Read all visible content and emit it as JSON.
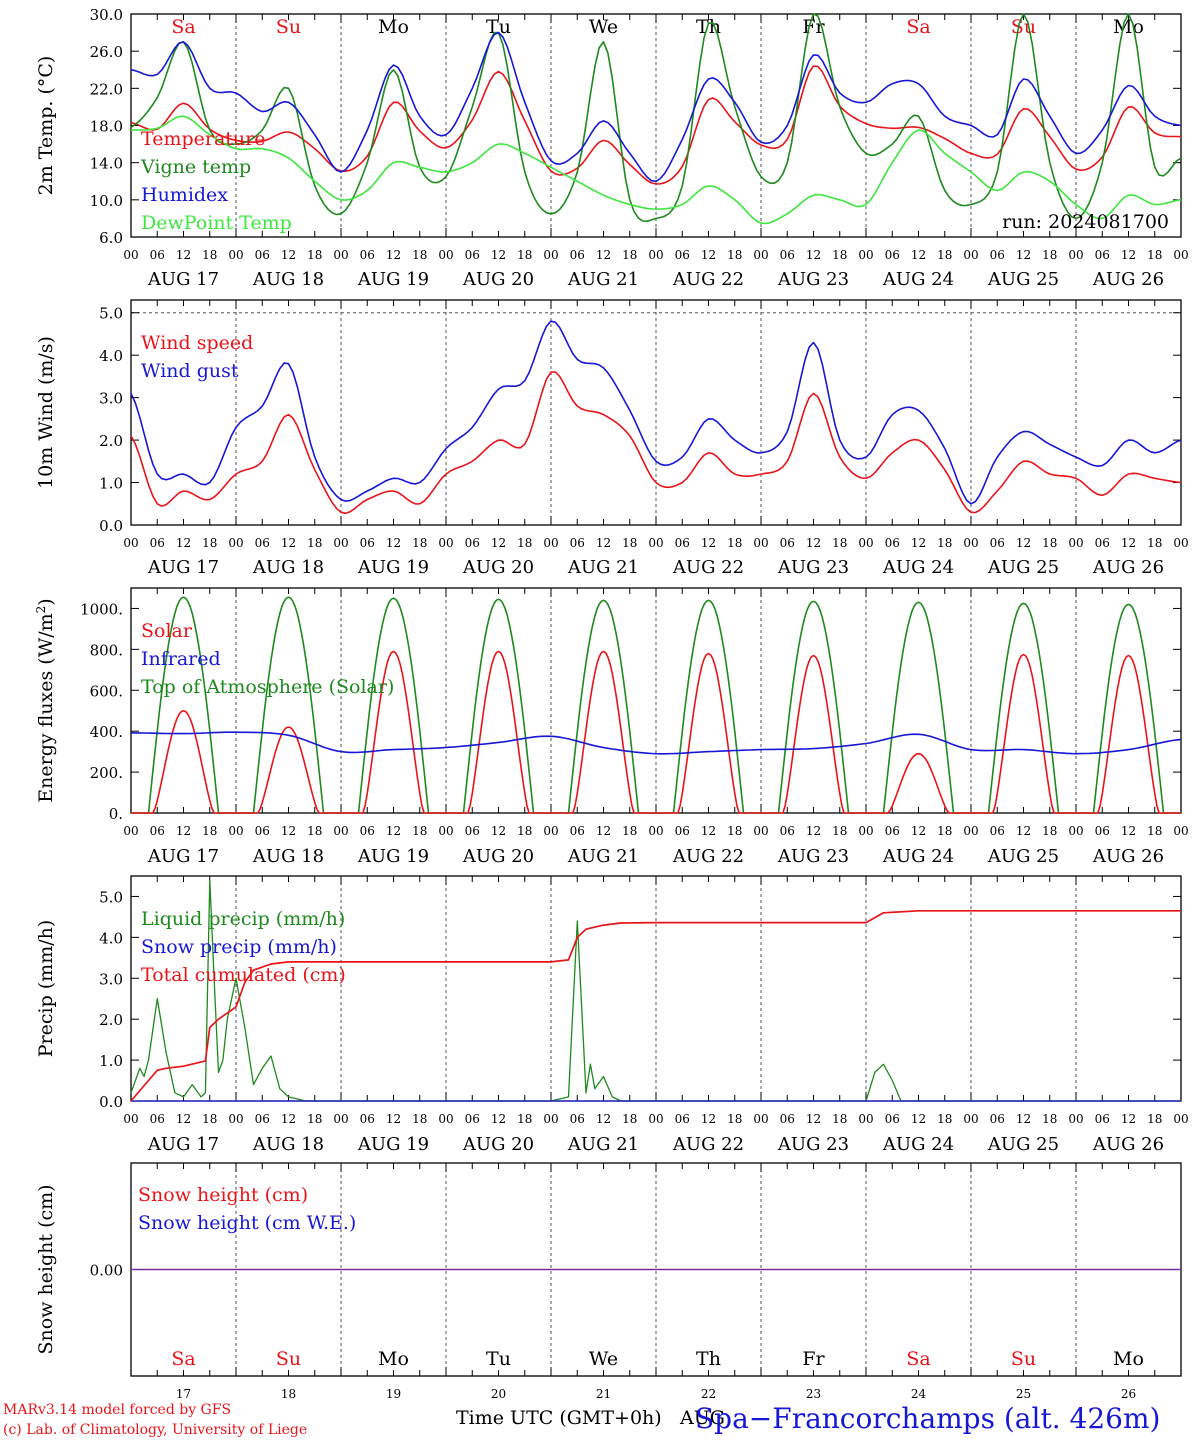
{
  "colors": {
    "red": "#e8141a",
    "green": "#1e8a1e",
    "blue": "#1717d6",
    "lightgreen": "#3ee63e",
    "purple": "#7a2a9a",
    "axis": "#000000",
    "grid": "#555555"
  },
  "day_labels": [
    "Sa",
    "Su",
    "Mo",
    "Tu",
    "We",
    "Th",
    "Fr",
    "Sa",
    "Su",
    "Mo"
  ],
  "weekend_flags": [
    true,
    true,
    false,
    false,
    false,
    false,
    false,
    true,
    true,
    false
  ],
  "date_labels": [
    "AUG 17",
    "AUG 18",
    "AUG 19",
    "AUG 20",
    "AUG 21",
    "AUG 22",
    "AUG 23",
    "AUG 24",
    "AUG 25",
    "AUG 26"
  ],
  "hour_labels": [
    "00",
    "06",
    "12",
    "18"
  ],
  "last_hour_label": "00",
  "bottom_day_numbers": [
    "17",
    "18",
    "19",
    "20",
    "21",
    "22",
    "23",
    "24",
    "25",
    "26"
  ],
  "footer": {
    "time_axis_label": "Time UTC (GMT+0h)",
    "month": "AUG",
    "station": "Spa−Francorchamps (alt. 426m)",
    "credit_line1": "MARv3.14 model forced by GFS",
    "credit_line2": "(c) Lab. of Climatology, University of Liege"
  },
  "chart_data": [
    {
      "type": "line",
      "ylabel": "2m Temp. (°C)",
      "ylim": [
        6,
        30
      ],
      "yticks": [
        "6.0",
        "10.0",
        "14.0",
        "18.0",
        "22.0",
        "26.0",
        "30.0"
      ],
      "ytick_values": [
        6,
        10,
        14,
        18,
        22,
        26,
        30
      ],
      "annotation": "run: 2024081700",
      "x_hours_from_start": [
        0,
        6,
        12,
        18,
        24,
        30,
        36,
        42,
        48,
        54,
        60,
        66,
        72,
        78,
        84,
        90,
        96,
        102,
        108,
        114,
        120,
        126,
        132,
        138,
        144,
        150,
        156,
        162,
        168,
        174,
        180,
        186,
        192,
        198,
        204,
        210,
        216,
        222,
        228,
        234,
        240
      ],
      "series": [
        {
          "name": "Temperature",
          "color": "red",
          "values": [
            18.3,
            17.6,
            20.4,
            17.6,
            16.4,
            16.3,
            17.3,
            15.5,
            13.1,
            14.7,
            20.5,
            17.4,
            15.6,
            18.6,
            23.8,
            18.5,
            13.1,
            13.4,
            16.4,
            13.8,
            11.7,
            13.6,
            20.8,
            18.4,
            15.9,
            16.5,
            24.4,
            20.1,
            18.2,
            17.7,
            17.8,
            16.6,
            15.0,
            14.9,
            19.8,
            16.8,
            13.3,
            14.6,
            20.0,
            17.2,
            16.8
          ]
        },
        {
          "name": "Vigne temp",
          "color": "green",
          "values": [
            17.8,
            21.0,
            27.0,
            17.5,
            16.0,
            17.5,
            22.0,
            11.5,
            8.5,
            14.0,
            24.0,
            13.5,
            12.5,
            20.0,
            28.0,
            13.0,
            8.5,
            13.0,
            27.0,
            10.0,
            8.0,
            11.5,
            29.0,
            20.0,
            12.5,
            14.0,
            30.0,
            20.0,
            15.0,
            16.0,
            19.0,
            11.0,
            9.5,
            13.0,
            30.0,
            14.0,
            8.0,
            14.0,
            30.0,
            13.5,
            14.5
          ]
        },
        {
          "name": "Humidex",
          "color": "blue",
          "values": [
            24.0,
            23.5,
            27.0,
            22.0,
            21.5,
            19.5,
            20.5,
            17.0,
            13.0,
            17.5,
            24.5,
            19.0,
            17.0,
            22.0,
            28.0,
            20.5,
            14.2,
            15.0,
            18.5,
            15.0,
            12.0,
            16.5,
            23.0,
            20.5,
            16.2,
            18.0,
            25.6,
            21.5,
            20.5,
            22.5,
            22.5,
            19.0,
            18.0,
            17.0,
            23.0,
            19.0,
            15.0,
            17.5,
            22.3,
            19.0,
            18.0
          ]
        },
        {
          "name": "DewPoint Temp",
          "color": "lightgreen",
          "values": [
            17.5,
            17.7,
            19.0,
            17.0,
            15.5,
            15.5,
            14.5,
            12.0,
            10.0,
            11.0,
            14.0,
            13.5,
            13.0,
            14.0,
            16.0,
            15.0,
            13.5,
            12.0,
            10.5,
            9.5,
            9.0,
            9.5,
            11.5,
            10.0,
            7.5,
            8.5,
            10.5,
            10.0,
            9.5,
            14.0,
            17.5,
            15.0,
            13.0,
            11.0,
            13.0,
            12.0,
            9.5,
            8.0,
            10.5,
            9.5,
            10.0
          ]
        }
      ]
    },
    {
      "type": "line",
      "ylabel": "10m Wind (m/s)",
      "ylim": [
        0,
        5.3
      ],
      "yticks": [
        "0.0",
        "1.0",
        "2.0",
        "3.0",
        "4.0",
        "5.0"
      ],
      "ytick_values": [
        0,
        1,
        2,
        3,
        4,
        5
      ],
      "x_hours_from_start": [
        0,
        6,
        12,
        18,
        24,
        30,
        36,
        42,
        48,
        54,
        60,
        66,
        72,
        78,
        84,
        90,
        96,
        102,
        108,
        114,
        120,
        126,
        132,
        138,
        144,
        150,
        156,
        162,
        168,
        174,
        180,
        186,
        192,
        198,
        204,
        210,
        216,
        222,
        228,
        234,
        240
      ],
      "series": [
        {
          "name": "Wind speed",
          "color": "red",
          "values": [
            2.1,
            0.5,
            0.8,
            0.6,
            1.2,
            1.5,
            2.6,
            1.3,
            0.3,
            0.6,
            0.8,
            0.5,
            1.2,
            1.5,
            2.0,
            1.9,
            3.6,
            2.8,
            2.6,
            2.1,
            1.0,
            1.0,
            1.7,
            1.2,
            1.2,
            1.5,
            3.1,
            1.6,
            1.1,
            1.7,
            2.0,
            1.3,
            0.3,
            0.8,
            1.5,
            1.2,
            1.1,
            0.7,
            1.2,
            1.1,
            1.0
          ]
        },
        {
          "name": "Wind gust",
          "color": "blue",
          "values": [
            3.1,
            1.2,
            1.2,
            1.0,
            2.3,
            2.8,
            3.8,
            1.6,
            0.6,
            0.8,
            1.1,
            1.0,
            1.8,
            2.3,
            3.2,
            3.4,
            4.8,
            3.9,
            3.7,
            2.7,
            1.5,
            1.6,
            2.5,
            2.0,
            1.7,
            2.2,
            4.3,
            2.0,
            1.6,
            2.6,
            2.7,
            1.8,
            0.5,
            1.6,
            2.2,
            1.9,
            1.6,
            1.4,
            2.0,
            1.7,
            2.0
          ]
        }
      ]
    },
    {
      "type": "line",
      "ylabel": "Energy fluxes (W/m²)",
      "ylim": [
        0,
        1100
      ],
      "yticks": [
        "0.",
        "200.",
        "400.",
        "600.",
        "800.",
        "1000."
      ],
      "ytick_values": [
        0,
        200,
        400,
        600,
        800,
        1000
      ],
      "solar_daily_peak": [
        500,
        420,
        790,
        790,
        790,
        780,
        770,
        290,
        775,
        770
      ],
      "toa_daily_peak": [
        1055,
        1055,
        1050,
        1045,
        1040,
        1040,
        1035,
        1030,
        1025,
        1020
      ],
      "series": [
        {
          "name": "Solar",
          "color": "red"
        },
        {
          "name": "Infrared",
          "color": "blue",
          "x_hours_from_start": [
            0,
            12,
            24,
            36,
            48,
            60,
            72,
            84,
            96,
            108,
            120,
            132,
            144,
            156,
            168,
            180,
            192,
            204,
            216,
            228,
            240
          ],
          "values": [
            392,
            388,
            395,
            380,
            300,
            310,
            320,
            345,
            375,
            320,
            290,
            300,
            310,
            315,
            340,
            385,
            310,
            310,
            290,
            310,
            360
          ]
        },
        {
          "name": "Top of Atmosphere (Solar)",
          "color": "green"
        }
      ]
    },
    {
      "type": "line",
      "ylabel": "Precip (mm/h)",
      "ylim": [
        0,
        5.5
      ],
      "yticks": [
        "0.0",
        "1.0",
        "2.0",
        "3.0",
        "4.0",
        "5.0"
      ],
      "ytick_values": [
        0,
        1,
        2,
        3,
        4,
        5
      ],
      "series": [
        {
          "name": "Liquid precip (mm/h)",
          "color": "green",
          "x_hours_from_start": [
            0,
            2,
            3,
            4,
            6,
            8,
            10,
            12,
            14,
            16,
            17,
            18,
            19,
            20,
            21,
            22,
            24,
            26,
            28,
            30,
            32,
            34,
            36,
            40,
            48,
            96,
            100,
            102,
            104,
            105,
            106,
            108,
            110,
            112,
            114,
            118,
            126,
            168,
            170,
            172,
            174,
            176,
            240
          ],
          "values": [
            0.2,
            0.8,
            0.6,
            1.0,
            2.5,
            1.2,
            0.2,
            0.1,
            0.4,
            0.1,
            0.2,
            5.4,
            3.0,
            0.7,
            1.0,
            2.0,
            3.0,
            1.8,
            0.4,
            0.8,
            1.1,
            0.3,
            0.1,
            0.0,
            0.0,
            0.0,
            0.1,
            4.4,
            0.2,
            0.9,
            0.3,
            0.6,
            0.1,
            0.0,
            0.0,
            0.0,
            0.0,
            0.0,
            0.7,
            0.9,
            0.5,
            0.0,
            0.0
          ]
        },
        {
          "name": "Snow precip (mm/h)",
          "color": "blue",
          "x_hours_from_start": [
            0,
            240
          ],
          "values": [
            0,
            0
          ]
        },
        {
          "name": "Total cumulated (cm)",
          "color": "red",
          "x_hours_from_start": [
            0,
            4,
            6,
            8,
            12,
            17,
            18,
            20,
            24,
            26,
            28,
            32,
            36,
            48,
            60,
            72,
            84,
            96,
            100,
            102,
            104,
            108,
            112,
            120,
            144,
            168,
            172,
            180,
            240
          ],
          "values": [
            0.0,
            0.5,
            0.75,
            0.8,
            0.85,
            0.98,
            1.8,
            2.0,
            2.3,
            2.9,
            3.2,
            3.35,
            3.4,
            3.4,
            3.4,
            3.4,
            3.4,
            3.4,
            3.45,
            4.0,
            4.2,
            4.3,
            4.35,
            4.36,
            4.36,
            4.36,
            4.6,
            4.65,
            4.65
          ]
        }
      ]
    },
    {
      "type": "line",
      "ylabel": "Snow height (cm)",
      "ylim": [
        -1,
        1
      ],
      "yticks": [
        "0.00"
      ],
      "ytick_values": [
        0
      ],
      "series": [
        {
          "name": "Snow height (cm)",
          "color": "red",
          "x_hours_from_start": [
            0,
            240
          ],
          "values": [
            0,
            0
          ]
        },
        {
          "name": "Snow height (cm W.E.)",
          "color": "blue",
          "x_hours_from_start": [
            0,
            240
          ],
          "values": [
            0,
            0
          ]
        }
      ]
    }
  ]
}
